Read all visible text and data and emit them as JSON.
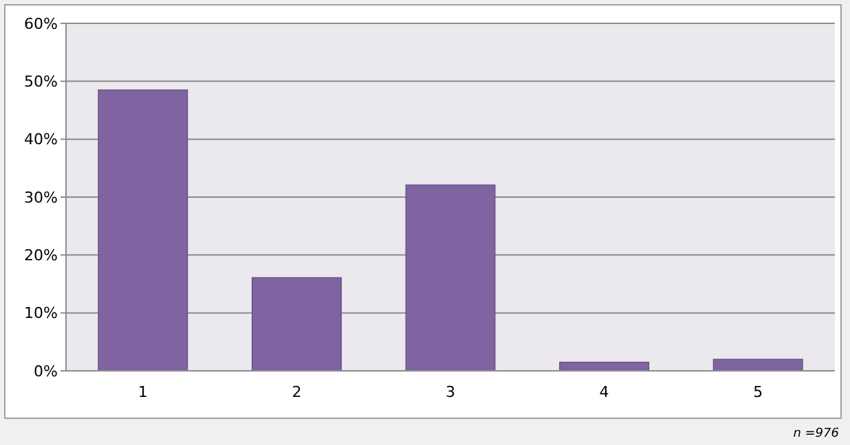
{
  "chart_data": {
    "type": "bar",
    "categories": [
      "1",
      "2",
      "3",
      "4",
      "5"
    ],
    "values": [
      48.5,
      16.1,
      32.1,
      1.5,
      2.0
    ],
    "color": "#8064a2",
    "ylim": [
      0,
      60
    ],
    "yticks": [
      {
        "value": 0,
        "label": "0%"
      },
      {
        "value": 10,
        "label": "10%"
      },
      {
        "value": 20,
        "label": "20%"
      },
      {
        "value": 30,
        "label": "30%"
      },
      {
        "value": 40,
        "label": "40%"
      },
      {
        "value": 50,
        "label": "50%"
      },
      {
        "value": 60,
        "label": "60%"
      }
    ],
    "grid": "y",
    "annotations": [
      "n =976"
    ]
  }
}
